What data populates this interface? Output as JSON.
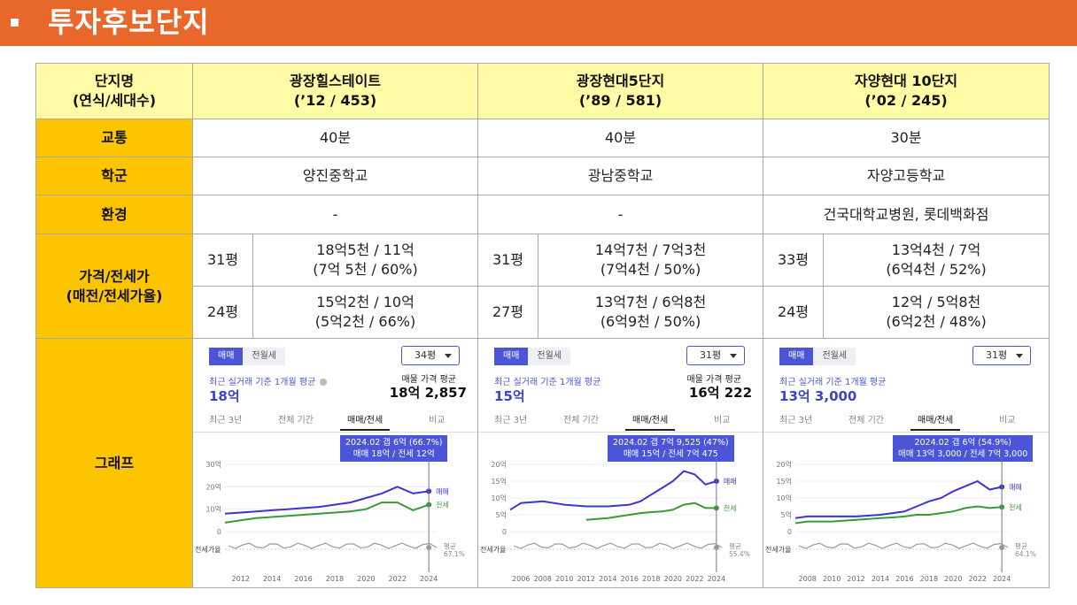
{
  "header": {
    "title": "투자후보단지"
  },
  "table": {
    "corner": {
      "line1": "단지명",
      "line2": "(연식/세대수)"
    },
    "complexes": [
      {
        "name": "광장힐스테이트",
        "info": "(’12 / 453)"
      },
      {
        "name": "광장현대5단지",
        "info": "(’89 / 581)"
      },
      {
        "name": "자양현대 10단지",
        "info": "(’02 / 245)"
      }
    ],
    "rows": {
      "traffic": {
        "label": "교통",
        "values": [
          "40분",
          "40분",
          "30분"
        ]
      },
      "school": {
        "label": "학군",
        "values": [
          "양진중학교",
          "광남중학교",
          "자양고등학교"
        ]
      },
      "env": {
        "label": "환경",
        "values": [
          "-",
          "-",
          "건국대학교병원, 롯데백화점"
        ]
      },
      "price": {
        "label_line1": "가격/전세가",
        "label_line2": "(매전/전세가율)",
        "entries": [
          [
            {
              "size": "31평",
              "line1": "18억5천 / 11억",
              "line2": "(7억 5천 / 60%)"
            },
            {
              "size": "24평",
              "line1": "15억2천 / 10억",
              "line2": "(5억2천 / 66%)"
            }
          ],
          [
            {
              "size": "31평",
              "line1": "14억7천 / 7억3천",
              "line2": "(7억4천 / 50%)"
            },
            {
              "size": "27평",
              "line1": "13억7천 / 6억8천",
              "line2": "(6억9천 / 50%)"
            }
          ],
          [
            {
              "size": "33평",
              "line1": "13억4천 / 7억",
              "line2": "(6억4천 / 52%)"
            },
            {
              "size": "24평",
              "line1": "12억 / 5억8천",
              "line2": "(6억2천 / 48%)"
            }
          ]
        ]
      },
      "graph": {
        "label": "그래프"
      }
    }
  },
  "graphs": [
    {
      "tab_sale": "매매",
      "tab_rent": "전월세",
      "size_select": "34평",
      "avg_label": "최근 실거래 기준 1개월 평균",
      "avg_value": "18억",
      "ask_label": "매물 가격 평균",
      "ask_value": "18억 2,857",
      "subtabs": [
        "최근 3년",
        "전체 기간",
        "매매/전세",
        "비교"
      ],
      "tooltip_line1": "2024.02  갭 6억 (66.7%)",
      "tooltip_line2": "매매 18억 / 전세 12억",
      "y_ticks": [
        "30억",
        "20억",
        "10억",
        "0"
      ],
      "x_ticks": [
        "2012",
        "2014",
        "2016",
        "2018",
        "2020",
        "2022",
        "2024"
      ],
      "series_sale": "매매",
      "series_rent": "전세",
      "ratio_label": "전세가율",
      "ratio_avg_label": "평균",
      "ratio_avg_value": "67.1%"
    },
    {
      "tab_sale": "매매",
      "tab_rent": "전월세",
      "size_select": "31평",
      "avg_label": "최근 실거래 기준 1개월 평균",
      "avg_value": "15억",
      "ask_label": "매물 가격 평균",
      "ask_value": "16억 222",
      "subtabs": [
        "최근 3년",
        "전체 기간",
        "매매/전세",
        "비교"
      ],
      "tooltip_line1": "2024.02  갭 7억 9,525 (47%)",
      "tooltip_line2": "매매 15억 / 전세 7억 475",
      "y_ticks": [
        "20억",
        "15억",
        "10억",
        "5억",
        "0"
      ],
      "x_ticks": [
        "2006",
        "2008",
        "2010",
        "2012",
        "2014",
        "2016",
        "2018",
        "2020",
        "2022",
        "2024"
      ],
      "series_sale": "매매",
      "series_rent": "전세",
      "ratio_label": "전세가율",
      "ratio_avg_label": "평균",
      "ratio_avg_value": "55.4%"
    },
    {
      "tab_sale": "매매",
      "tab_rent": "전월세",
      "size_select": "31평",
      "avg_label": "최근 실거래 기준 1개월 평균",
      "avg_value": "13억 3,000",
      "ask_label": "",
      "ask_value": "",
      "subtabs": [
        "최근 3년",
        "전체 기간",
        "매매/전세",
        "비교"
      ],
      "tooltip_line1": "2024.02  갭 6억 (54.9%)",
      "tooltip_line2": "매매 13억 3,000 / 전세 7억 3,000",
      "y_ticks": [
        "20억",
        "15억",
        "10억",
        "5억",
        "0"
      ],
      "x_ticks": [
        "2008",
        "2010",
        "2012",
        "2014",
        "2016",
        "2018",
        "2020",
        "2022",
        "2024"
      ],
      "series_sale": "매매",
      "series_rent": "전세",
      "ratio_label": "전세가율",
      "ratio_avg_label": "평균",
      "ratio_avg_value": "64.1%"
    }
  ],
  "chart_data": [
    {
      "type": "line",
      "x": [
        2011,
        2012,
        2013,
        2014,
        2015,
        2016,
        2017,
        2018,
        2019,
        2020,
        2021,
        2022,
        2023,
        2024
      ],
      "series": [
        {
          "name": "매매",
          "values": [
            8,
            8.5,
            9,
            9.5,
            10,
            10.5,
            11,
            12,
            13,
            15,
            17,
            20,
            17,
            18
          ]
        },
        {
          "name": "전세",
          "values": [
            4,
            5,
            6,
            6.5,
            7,
            7.5,
            8,
            8.5,
            9,
            10,
            13,
            13,
            9.5,
            12
          ]
        }
      ],
      "ylim": [
        0,
        30
      ],
      "color_sale": "#3b35d0",
      "color_rent": "#3a9a3a"
    },
    {
      "type": "line",
      "x": [
        2005,
        2006,
        2008,
        2010,
        2012,
        2014,
        2016,
        2017,
        2018,
        2019,
        2020,
        2021,
        2022,
        2023,
        2024
      ],
      "series": [
        {
          "name": "매매",
          "values": [
            6.5,
            8.5,
            9,
            8,
            7.5,
            7.5,
            8,
            9,
            11,
            13,
            15,
            18,
            17,
            14,
            15
          ]
        },
        {
          "name": "전세",
          "values": [
            null,
            null,
            null,
            null,
            3.5,
            4,
            5,
            5.5,
            5.8,
            6,
            6.5,
            8,
            8.5,
            7,
            7
          ]
        }
      ],
      "ylim": [
        0,
        20
      ],
      "color_sale": "#3b35d0",
      "color_rent": "#3a9a3a"
    },
    {
      "type": "line",
      "x": [
        2007,
        2008,
        2010,
        2012,
        2014,
        2015,
        2016,
        2017,
        2018,
        2019,
        2020,
        2021,
        2022,
        2023,
        2024
      ],
      "series": [
        {
          "name": "매매",
          "values": [
            4,
            4.5,
            4.5,
            4.5,
            5,
            5.5,
            6,
            7.5,
            9,
            10,
            12,
            13.5,
            15,
            12.5,
            13.3
          ]
        },
        {
          "name": "전세",
          "values": [
            2.5,
            3,
            3,
            3.5,
            4,
            4.2,
            4.5,
            5,
            5,
            5.5,
            6,
            7,
            7.5,
            7,
            7.3
          ]
        }
      ],
      "ylim": [
        0,
        20
      ],
      "color_sale": "#3b35d0",
      "color_rent": "#3a9a3a"
    }
  ]
}
